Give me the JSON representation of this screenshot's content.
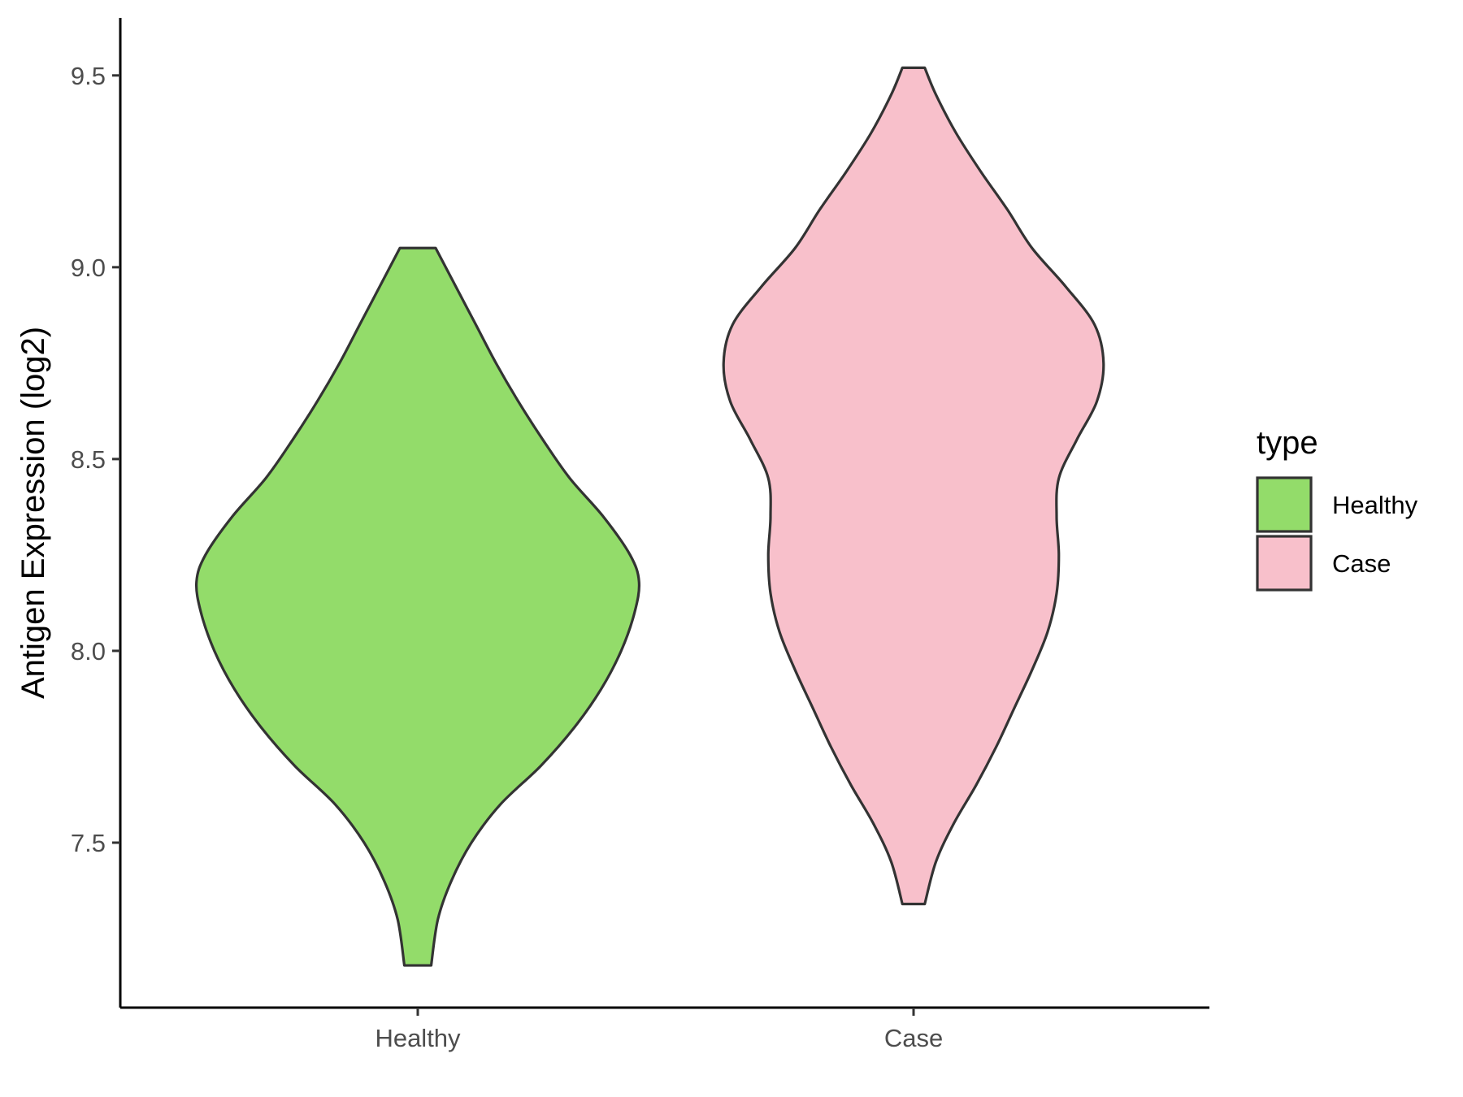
{
  "chart_data": {
    "type": "violin",
    "ylabel": "Antigen Expression (log2)",
    "xlabel": "",
    "ylim": [
      7.07,
      9.65
    ],
    "yticks": [
      7.5,
      8.0,
      8.5,
      9.0,
      9.5
    ],
    "ytick_labels": [
      "7.5",
      "8.0",
      "8.5",
      "9.0",
      "9.5"
    ],
    "categories": [
      "Healthy",
      "Case"
    ],
    "grid": false,
    "legend": {
      "title": "type",
      "position": "right",
      "entries": [
        {
          "label": "Healthy",
          "color": "#93dc6a"
        },
        {
          "label": "Case",
          "color": "#f8c0cb"
        }
      ]
    },
    "series": [
      {
        "name": "Healthy",
        "color": "#93dc6a",
        "min": 7.18,
        "max": 9.05,
        "density": [
          [
            7.18,
            0.06
          ],
          [
            7.3,
            0.09
          ],
          [
            7.4,
            0.15
          ],
          [
            7.5,
            0.24
          ],
          [
            7.6,
            0.37
          ],
          [
            7.7,
            0.55
          ],
          [
            7.8,
            0.7
          ],
          [
            7.9,
            0.82
          ],
          [
            8.0,
            0.91
          ],
          [
            8.1,
            0.97
          ],
          [
            8.18,
            0.99
          ],
          [
            8.25,
            0.95
          ],
          [
            8.35,
            0.83
          ],
          [
            8.45,
            0.68
          ],
          [
            8.55,
            0.56
          ],
          [
            8.65,
            0.45
          ],
          [
            8.75,
            0.35
          ],
          [
            8.85,
            0.26
          ],
          [
            8.95,
            0.17
          ],
          [
            9.05,
            0.08
          ]
        ]
      },
      {
        "name": "Case",
        "color": "#f8c0cb",
        "min": 7.34,
        "max": 9.52,
        "density": [
          [
            7.34,
            0.05
          ],
          [
            7.45,
            0.1
          ],
          [
            7.55,
            0.18
          ],
          [
            7.65,
            0.28
          ],
          [
            7.75,
            0.37
          ],
          [
            7.85,
            0.45
          ],
          [
            7.95,
            0.53
          ],
          [
            8.05,
            0.6
          ],
          [
            8.15,
            0.64
          ],
          [
            8.25,
            0.65
          ],
          [
            8.35,
            0.64
          ],
          [
            8.45,
            0.65
          ],
          [
            8.55,
            0.73
          ],
          [
            8.65,
            0.82
          ],
          [
            8.75,
            0.85
          ],
          [
            8.85,
            0.81
          ],
          [
            8.95,
            0.68
          ],
          [
            9.05,
            0.53
          ],
          [
            9.15,
            0.42
          ],
          [
            9.25,
            0.3
          ],
          [
            9.35,
            0.19
          ],
          [
            9.45,
            0.1
          ],
          [
            9.52,
            0.05
          ]
        ]
      }
    ]
  }
}
